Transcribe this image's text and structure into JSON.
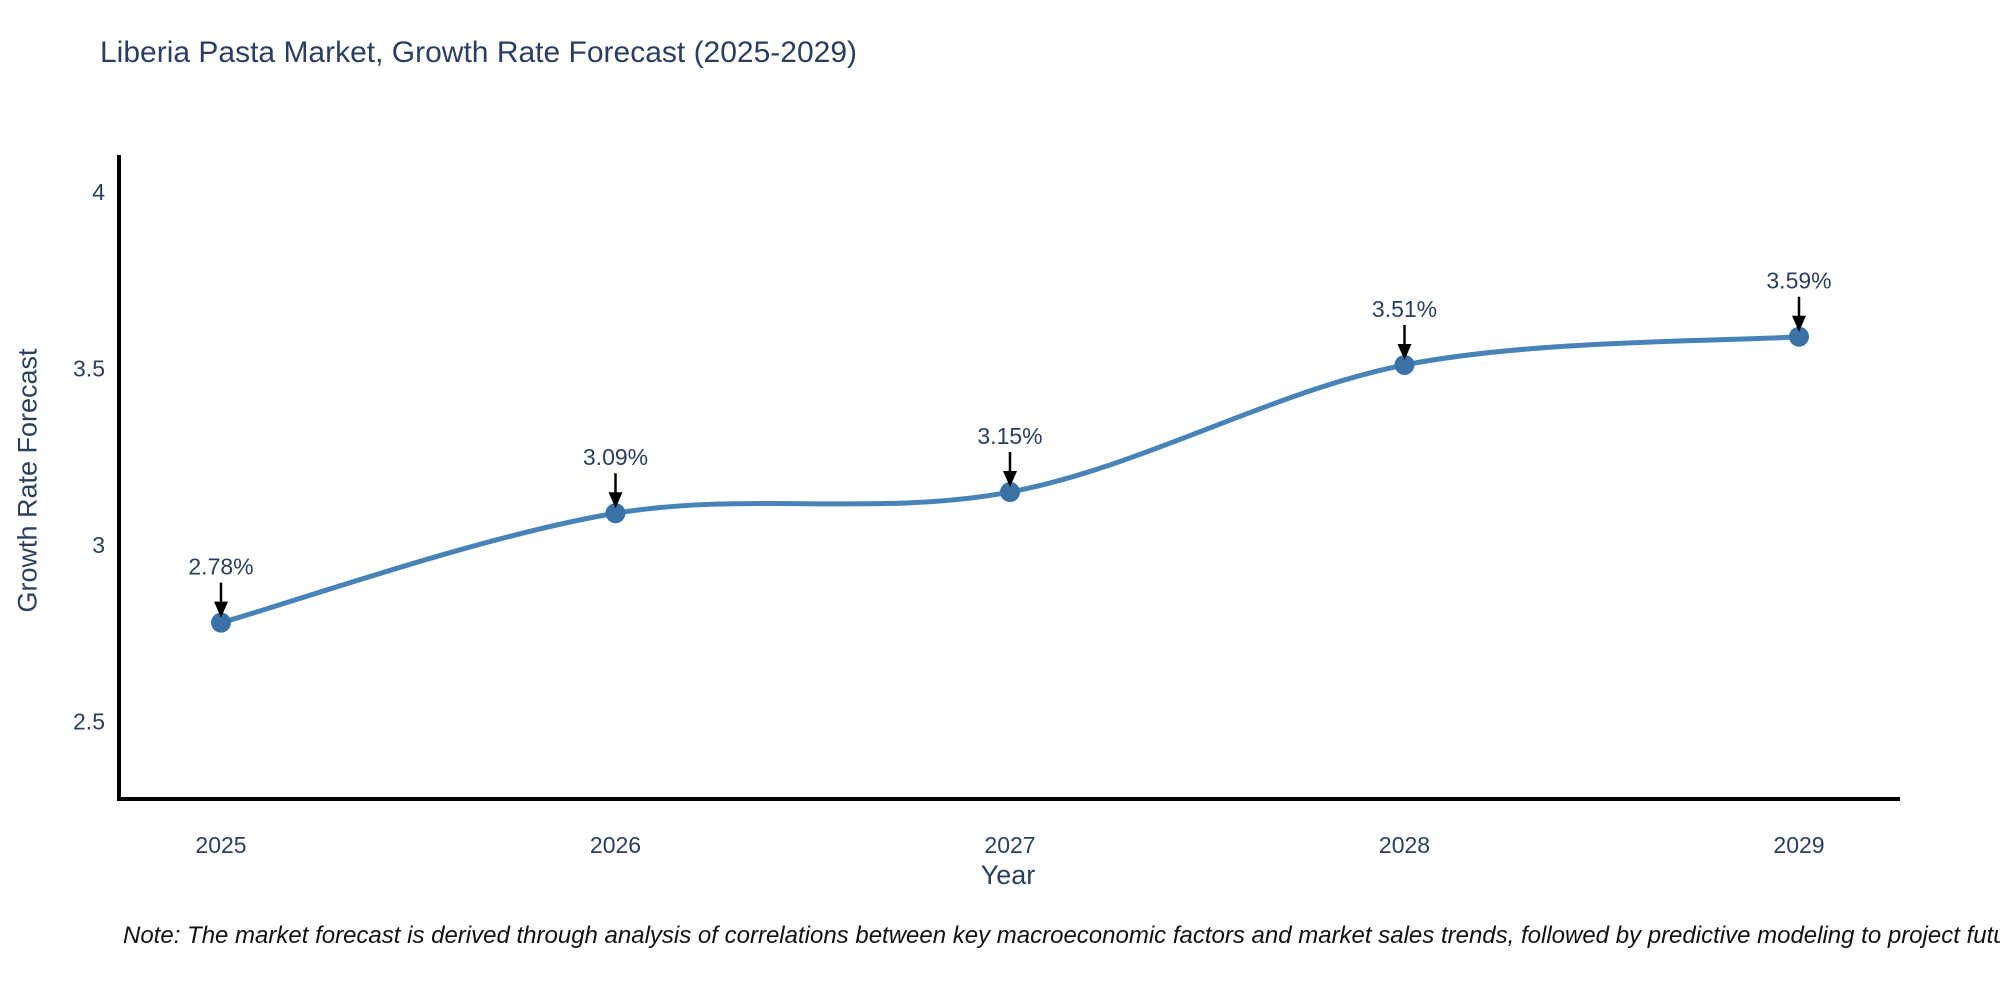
{
  "title": "Liberia Pasta Market, Growth Rate Forecast (2025-2029)",
  "note": "Note: The market forecast is derived through analysis of correlations between key macroeconomic factors and market sales trends, followed by predictive modeling to project future sales",
  "chart_data": {
    "type": "line",
    "line_shape": "spline",
    "title": "Liberia Pasta Market, Growth Rate Forecast (2025-2029)",
    "xlabel": "Year",
    "ylabel": "Growth Rate Forecast",
    "x": [
      2025,
      2026,
      2027,
      2028,
      2029
    ],
    "series": [
      {
        "name": "Growth Rate Forecast",
        "values": [
          2.78,
          3.09,
          3.15,
          3.51,
          3.59
        ]
      }
    ],
    "point_labels": [
      "2.78%",
      "3.09%",
      "3.15%",
      "3.51%",
      "3.59%"
    ],
    "xticks": [
      "2025",
      "2026",
      "2027",
      "2028",
      "2029"
    ],
    "yticks": [
      2.5,
      3,
      3.5,
      4
    ],
    "ylim": [
      2.28,
      4.1
    ],
    "grid": false,
    "legend": "none",
    "annotations": "value labels with downward arrows above each marker",
    "colors": {
      "line": "#4783b8",
      "marker": "#3a72a8",
      "axis": "#000000",
      "text": "#2a3f5f",
      "arrow": "#000000",
      "note": "#111111"
    }
  }
}
